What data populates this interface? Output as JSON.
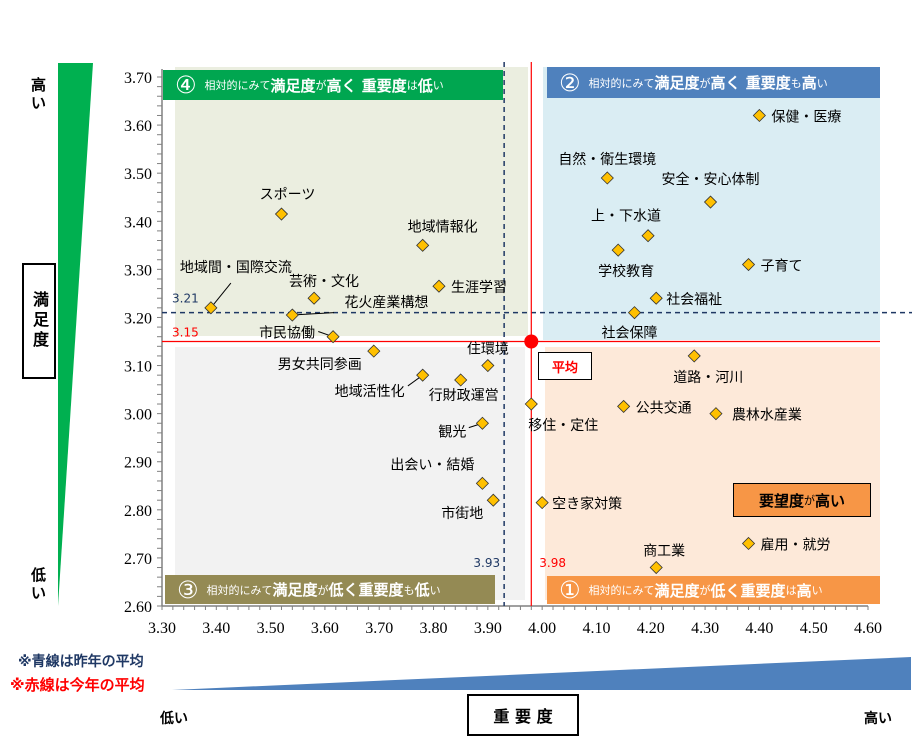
{
  "chart_data": {
    "type": "scatter",
    "title": "",
    "xlabel": "重要度",
    "ylabel": "満足度",
    "xlim": [
      3.3,
      4.6
    ],
    "ylim": [
      2.6,
      3.7
    ],
    "xticks": [
      "3.30",
      "3.40",
      "3.50",
      "3.60",
      "3.70",
      "3.80",
      "3.90",
      "4.00",
      "4.10",
      "4.20",
      "4.30",
      "4.40",
      "4.50",
      "4.60"
    ],
    "yticks": [
      "2.60",
      "2.70",
      "2.80",
      "2.90",
      "3.00",
      "3.10",
      "3.20",
      "3.30",
      "3.40",
      "3.50",
      "3.60",
      "3.70"
    ],
    "points": [
      {
        "label": "保健・医療",
        "x": 4.4,
        "y": 3.62
      },
      {
        "label": "自然・衛生環境",
        "x": 4.12,
        "y": 3.49
      },
      {
        "label": "安全・安心体制",
        "x": 4.31,
        "y": 3.44
      },
      {
        "label": "上・下水道",
        "x": 4.195,
        "y": 3.37
      },
      {
        "label": "学校教育",
        "x": 4.14,
        "y": 3.34
      },
      {
        "label": "子育て",
        "x": 4.38,
        "y": 3.31
      },
      {
        "label": "社会福祉",
        "x": 4.21,
        "y": 3.24
      },
      {
        "label": "社会保障",
        "x": 4.17,
        "y": 3.21
      },
      {
        "label": "スポーツ",
        "x": 3.52,
        "y": 3.415
      },
      {
        "label": "地域情報化",
        "x": 3.78,
        "y": 3.35
      },
      {
        "label": "生涯学習",
        "x": 3.81,
        "y": 3.265
      },
      {
        "label": "芸術・文化",
        "x": 3.58,
        "y": 3.24
      },
      {
        "label": "花火産業構想",
        "x": 3.54,
        "y": 3.205
      },
      {
        "label": "地域間・国際交流",
        "x": 3.39,
        "y": 3.22
      },
      {
        "label": "市民協働",
        "x": 3.615,
        "y": 3.16
      },
      {
        "label": "男女共同参画",
        "x": 3.69,
        "y": 3.13
      },
      {
        "label": "住環境",
        "x": 3.9,
        "y": 3.1
      },
      {
        "label": "地域活性化",
        "x": 3.78,
        "y": 3.08
      },
      {
        "label": "行財政運営",
        "x": 3.85,
        "y": 3.07
      },
      {
        "label": "移住・定住",
        "x": 3.98,
        "y": 3.02
      },
      {
        "label": "観光",
        "x": 3.89,
        "y": 2.98
      },
      {
        "label": "出会い・結婚",
        "x": 3.89,
        "y": 2.855
      },
      {
        "label": "市街地",
        "x": 3.91,
        "y": 2.82
      },
      {
        "label": "空き家対策",
        "x": 4.0,
        "y": 2.815
      },
      {
        "label": "公共交通",
        "x": 4.15,
        "y": 3.015
      },
      {
        "label": "農林水産業",
        "x": 4.32,
        "y": 3.0
      },
      {
        "label": "道路・河川",
        "x": 4.28,
        "y": 3.12
      },
      {
        "label": "商工業",
        "x": 4.21,
        "y": 2.68
      },
      {
        "label": "雇用・就労",
        "x": 4.38,
        "y": 2.73
      }
    ],
    "averages": {
      "this_year": {
        "x": 3.98,
        "y": 3.15,
        "x_label": "3.98",
        "y_label": "3.15",
        "color": "#ff0000"
      },
      "last_year": {
        "x": 3.93,
        "y": 3.21,
        "x_label": "3.93",
        "y_label": "3.21",
        "color": "#1f3864"
      }
    },
    "average_marker_label": "平均",
    "quadrants": [
      {
        "id": "q4",
        "num": "④",
        "color": "#00a650",
        "bg": "#ebeee0",
        "segments": [
          {
            "t": "相対的にみて",
            "b": false
          },
          {
            "t": "満足度",
            "b": true
          },
          {
            "t": "が",
            "b": false
          },
          {
            "t": "高く ",
            "b": true
          },
          {
            "t": "重要度",
            "b": true
          },
          {
            "t": "は",
            "b": false
          },
          {
            "t": "低",
            "b": true
          },
          {
            "t": "い",
            "b": false
          }
        ]
      },
      {
        "id": "q2",
        "num": "②",
        "color": "#4f81bd",
        "bg": "#daedf3",
        "segments": [
          {
            "t": "相対的にみて",
            "b": false
          },
          {
            "t": "満足度",
            "b": true
          },
          {
            "t": "が",
            "b": false
          },
          {
            "t": "高く ",
            "b": true
          },
          {
            "t": "重要度",
            "b": true
          },
          {
            "t": "も",
            "b": false
          },
          {
            "t": "高",
            "b": true
          },
          {
            "t": "い",
            "b": false
          }
        ]
      },
      {
        "id": "q3",
        "num": "③",
        "color": "#948a54",
        "bg": "#f2f2f2",
        "segments": [
          {
            "t": "相対的にみて",
            "b": false
          },
          {
            "t": "満足度",
            "b": true
          },
          {
            "t": "が",
            "b": false
          },
          {
            "t": "低く",
            "b": true
          },
          {
            "t": "重要度",
            "b": true
          },
          {
            "t": "も",
            "b": false
          },
          {
            "t": "低",
            "b": true
          },
          {
            "t": "い",
            "b": false
          }
        ]
      },
      {
        "id": "q1",
        "num": "①",
        "color": "#f79646",
        "bg": "#fde9d9",
        "segments": [
          {
            "t": "相対的にみて",
            "b": false
          },
          {
            "t": "満足度",
            "b": true
          },
          {
            "t": "が",
            "b": false
          },
          {
            "t": "低く",
            "b": true
          },
          {
            "t": "重要度",
            "b": true
          },
          {
            "t": "は",
            "b": false
          },
          {
            "t": "高",
            "b": true
          },
          {
            "t": "い",
            "b": false
          }
        ]
      }
    ],
    "demand_box": {
      "strong": "要望度",
      "small": "が",
      "strong2": "高い",
      "color": "#f79646"
    },
    "point_color": "#ffc000"
  },
  "y_axis": {
    "title": "満足度",
    "high": "高い",
    "low": "低い"
  },
  "x_axis": {
    "title": "重 要 度",
    "high": "高い",
    "low": "低い"
  },
  "notes": {
    "blue": "※青線は昨年の平均",
    "red": "※赤線は今年の平均"
  }
}
